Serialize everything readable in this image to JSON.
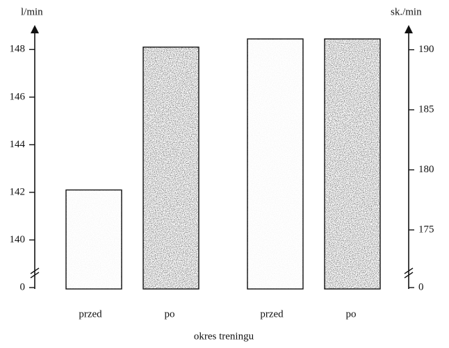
{
  "chart_data": {
    "type": "bar",
    "ylabel": "l/min",
    "y2label": "sk./min",
    "xlabel": "okres treningu",
    "categories": [
      "przed",
      "po",
      "przed",
      "po"
    ],
    "colors": [
      "#f3f3f3",
      "#4f4f4f",
      "#f3f3f3",
      "#4f4f4f"
    ],
    "series": [
      {
        "values": [
          142.1,
          148.1,
          null,
          null
        ],
        "axis": "y"
      },
      {
        "values": [
          null,
          null,
          190.9,
          190.9
        ],
        "axis": "y2"
      }
    ],
    "ylim": [
      0,
      149
    ],
    "yticks": [
      0,
      140,
      142,
      144,
      146,
      148
    ],
    "ybreak": [
      0,
      138
    ],
    "y2lim": [
      0,
      192
    ],
    "y2ticks": [
      0,
      175,
      180,
      185,
      190
    ],
    "y2break": [
      0,
      170.2
    ]
  }
}
